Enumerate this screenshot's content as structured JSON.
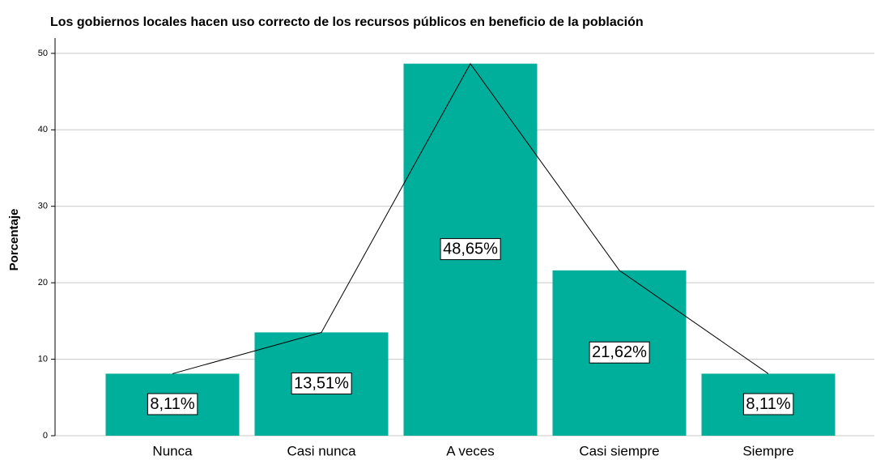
{
  "chart_data": {
    "type": "bar",
    "title": "Los gobiernos locales hacen uso correcto de los recursos públicos en beneficio de la población",
    "y_label": "Porcentaje",
    "categories": [
      "Nunca",
      "Casi nunca",
      "A veces",
      "Casi siempre",
      "Siempre"
    ],
    "values": [
      8.11,
      13.51,
      48.65,
      21.62,
      8.11
    ],
    "value_labels": [
      "8,11%",
      "13,51%",
      "48,65%",
      "21,62%",
      "8,11%"
    ],
    "color": "#00ae9c",
    "line_color": "#000000",
    "ylim": [
      0,
      52
    ],
    "yticks": [
      0,
      10,
      20,
      30,
      40,
      50
    ],
    "grid": true
  }
}
